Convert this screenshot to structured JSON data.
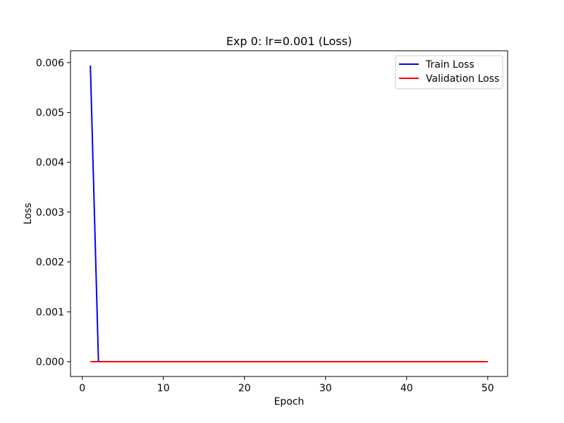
{
  "chart_data": {
    "type": "line",
    "title": "Exp 0: lr=0.001 (Loss)",
    "xlabel": "Epoch",
    "ylabel": "Loss",
    "xlim": [
      -1.45,
      52.45
    ],
    "ylim": [
      -0.000297,
      0.006237
    ],
    "xticks": [
      0,
      10,
      20,
      30,
      40,
      50
    ],
    "xtick_labels": [
      "0",
      "10",
      "20",
      "30",
      "40",
      "50"
    ],
    "yticks": [
      0.0,
      0.001,
      0.002,
      0.003,
      0.004,
      0.005,
      0.006
    ],
    "ytick_labels": [
      "0.000",
      "0.001",
      "0.002",
      "0.003",
      "0.004",
      "0.005",
      "0.006"
    ],
    "grid": false,
    "legend_position": "top-right",
    "series": [
      {
        "name": "Train Loss",
        "color": "#0000ff",
        "x": [
          1,
          2,
          3,
          4,
          5,
          6,
          7,
          8,
          9,
          10,
          11,
          12,
          13,
          14,
          15,
          16,
          17,
          18,
          19,
          20,
          21,
          22,
          23,
          24,
          25,
          26,
          27,
          28,
          29,
          30,
          31,
          32,
          33,
          34,
          35,
          36,
          37,
          38,
          39,
          40,
          41,
          42,
          43,
          44,
          45,
          46,
          47,
          48,
          49,
          50
        ],
        "y": [
          0.00594,
          0.0,
          0.0,
          0.0,
          0.0,
          0.0,
          0.0,
          0.0,
          0.0,
          0.0,
          0.0,
          0.0,
          0.0,
          0.0,
          0.0,
          0.0,
          0.0,
          0.0,
          0.0,
          0.0,
          0.0,
          0.0,
          0.0,
          0.0,
          0.0,
          0.0,
          0.0,
          0.0,
          0.0,
          0.0,
          0.0,
          0.0,
          0.0,
          0.0,
          0.0,
          0.0,
          0.0,
          0.0,
          0.0,
          0.0,
          0.0,
          0.0,
          0.0,
          0.0,
          0.0,
          0.0,
          0.0,
          0.0,
          0.0,
          0.0
        ]
      },
      {
        "name": "Validation Loss",
        "color": "#ff0000",
        "x": [
          1,
          2,
          3,
          4,
          5,
          6,
          7,
          8,
          9,
          10,
          11,
          12,
          13,
          14,
          15,
          16,
          17,
          18,
          19,
          20,
          21,
          22,
          23,
          24,
          25,
          26,
          27,
          28,
          29,
          30,
          31,
          32,
          33,
          34,
          35,
          36,
          37,
          38,
          39,
          40,
          41,
          42,
          43,
          44,
          45,
          46,
          47,
          48,
          49,
          50
        ],
        "y": [
          0.0,
          0.0,
          0.0,
          0.0,
          0.0,
          0.0,
          0.0,
          0.0,
          0.0,
          0.0,
          0.0,
          0.0,
          0.0,
          0.0,
          0.0,
          0.0,
          0.0,
          0.0,
          0.0,
          0.0,
          0.0,
          0.0,
          0.0,
          0.0,
          0.0,
          0.0,
          0.0,
          0.0,
          0.0,
          0.0,
          0.0,
          0.0,
          0.0,
          0.0,
          0.0,
          0.0,
          0.0,
          0.0,
          0.0,
          0.0,
          0.0,
          0.0,
          0.0,
          0.0,
          0.0,
          0.0,
          0.0,
          0.0,
          0.0,
          0.0
        ]
      }
    ]
  }
}
